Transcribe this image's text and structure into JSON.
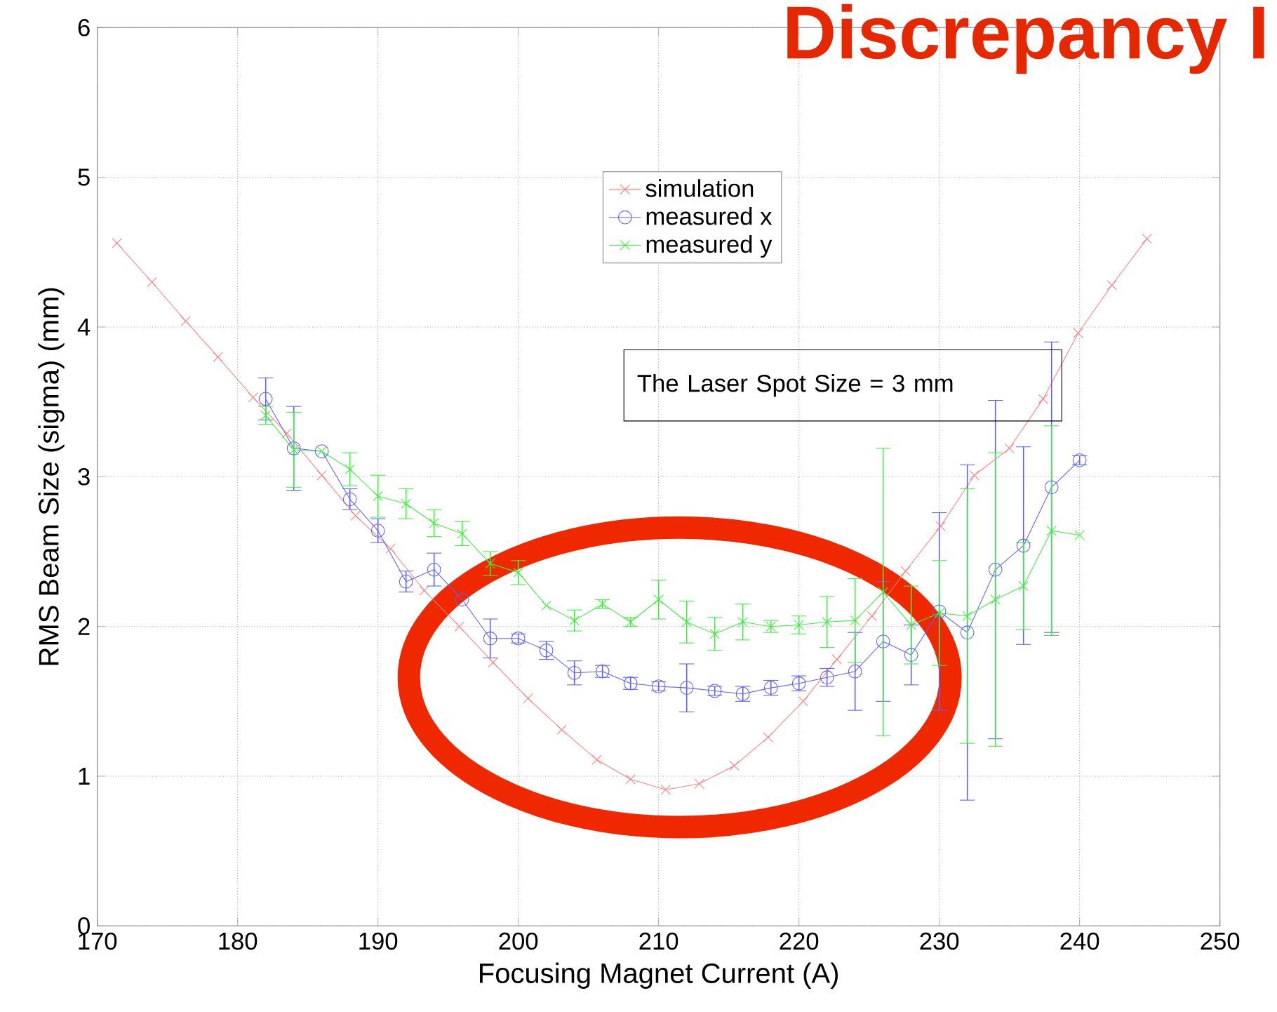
{
  "chart_data": {
    "type": "line",
    "title": "Discrepancy I",
    "xlabel": "Focusing Magnet Current (A)",
    "ylabel": "RMS Beam Size (sigma) (mm)",
    "xlim": [
      170,
      250
    ],
    "xticks": [
      170,
      180,
      190,
      200,
      210,
      220,
      230,
      240,
      250
    ],
    "ylim": [
      0,
      6
    ],
    "yticks": [
      0,
      1,
      2,
      3,
      4,
      5,
      6
    ],
    "grid": true,
    "legend": "top",
    "line_style": "solid",
    "annotations": [
      "The Laser Spot Size = 3 mm"
    ],
    "series": [
      {
        "name": "simulation",
        "color": "#ff8080",
        "marker": "cross",
        "x": [
          171.4,
          173.9,
          176.3,
          178.6,
          181.1,
          183.5,
          186.0,
          188.4,
          190.9,
          193.3,
          195.8,
          198.2,
          200.7,
          203.1,
          205.6,
          208.0,
          210.5,
          212.9,
          215.4,
          217.8,
          220.3,
          222.7,
          225.2,
          227.6,
          230.1,
          232.5,
          235.0,
          237.4,
          239.9,
          242.3,
          244.8
        ],
        "values": [
          4.56,
          4.3,
          4.04,
          3.8,
          3.53,
          3.29,
          3.01,
          2.74,
          2.52,
          2.24,
          2.0,
          1.76,
          1.52,
          1.31,
          1.11,
          0.98,
          0.91,
          0.95,
          1.07,
          1.26,
          1.5,
          1.78,
          2.07,
          2.37,
          2.67,
          3.01,
          3.19,
          3.52,
          3.96,
          4.28,
          4.59
        ]
      },
      {
        "name": "measured x",
        "color": "#6060ff",
        "marker": "circle",
        "x": [
          182,
          184,
          186,
          188,
          190,
          192,
          194,
          196,
          198,
          200,
          202,
          204,
          206,
          208,
          210,
          212,
          214,
          216,
          218,
          220,
          222,
          224,
          226,
          228,
          230,
          232,
          234,
          236,
          238,
          240
        ],
        "values": [
          3.52,
          3.19,
          3.17,
          2.85,
          2.64,
          2.3,
          2.38,
          2.18,
          1.92,
          1.92,
          1.84,
          1.69,
          1.7,
          1.62,
          1.6,
          1.59,
          1.57,
          1.55,
          1.59,
          1.62,
          1.66,
          1.7,
          1.9,
          1.81,
          2.1,
          1.96,
          2.38,
          2.54,
          2.93,
          3.11
        ],
        "errors": [
          0.14,
          0.28,
          null,
          0.07,
          0.08,
          0.07,
          0.11,
          null,
          0.13,
          0.03,
          0.06,
          0.08,
          0.04,
          0.04,
          0.03,
          0.16,
          0.03,
          0.05,
          0.05,
          0.05,
          0.06,
          0.26,
          0.4,
          0.2,
          0.66,
          1.12,
          1.13,
          0.66,
          0.97,
          0.03
        ]
      },
      {
        "name": "measured y",
        "color": "#40ee40",
        "marker": "cross",
        "x": [
          182,
          184,
          186,
          188,
          190,
          192,
          194,
          196,
          198,
          200,
          202,
          204,
          206,
          208,
          210,
          212,
          214,
          216,
          218,
          220,
          222,
          224,
          226,
          228,
          230,
          232,
          234,
          236,
          238,
          240
        ],
        "values": [
          3.41,
          3.18,
          3.17,
          3.05,
          2.87,
          2.82,
          2.69,
          2.62,
          2.42,
          2.36,
          2.14,
          2.04,
          2.15,
          2.03,
          2.18,
          2.03,
          1.95,
          2.03,
          2.0,
          2.01,
          2.03,
          2.04,
          2.23,
          2.01,
          2.09,
          2.07,
          2.18,
          2.27,
          2.64,
          2.61
        ],
        "errors": [
          0.06,
          0.25,
          null,
          0.11,
          0.14,
          0.1,
          0.09,
          0.08,
          0.08,
          0.08,
          null,
          0.07,
          0.03,
          0.03,
          0.13,
          0.14,
          0.11,
          0.12,
          0.04,
          0.06,
          0.17,
          0.28,
          0.96,
          0.26,
          0.35,
          0.85,
          0.98,
          0.29,
          0.7,
          null
        ]
      }
    ]
  }
}
